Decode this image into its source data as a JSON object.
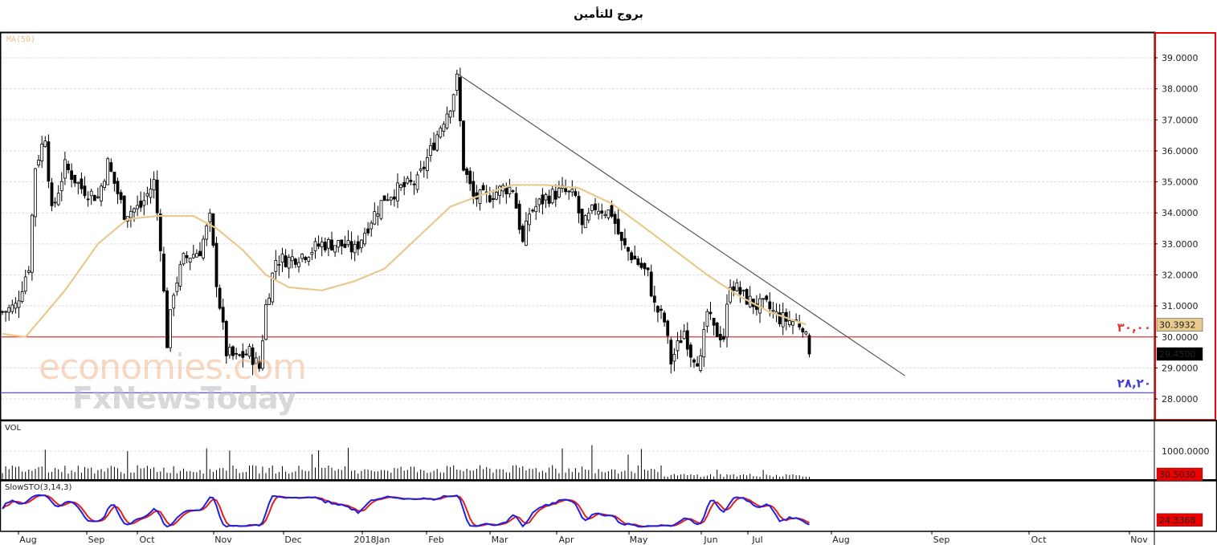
{
  "title": "بروج للتأمين",
  "chart_data": {
    "type": "candlestick",
    "title": "بروج للتأمين",
    "price_axis": {
      "ticks": [
        "39.0000",
        "38.0000",
        "37.0000",
        "36.0000",
        "35.0000",
        "34.0000",
        "33.0000",
        "32.0000",
        "31.0000",
        "30.0000",
        "29.0000",
        "28.0000"
      ],
      "range": [
        27.4,
        39.8
      ]
    },
    "x_ticks": [
      "Aug",
      "Sep",
      "Oct",
      "Nov",
      "Dec",
      "2018Jan",
      "Feb",
      "Mar",
      "Apr",
      "May",
      "Jun",
      "Jul",
      "Aug",
      "Sep",
      "Oct",
      "Nov"
    ],
    "close_anchors": [
      [
        0,
        30.8
      ],
      [
        4,
        31
      ],
      [
        8,
        32.3
      ],
      [
        10,
        35.5
      ],
      [
        13,
        36.5
      ],
      [
        15,
        34
      ],
      [
        19,
        35.5
      ],
      [
        24,
        34.8
      ],
      [
        29,
        34.5
      ],
      [
        32,
        35.6
      ],
      [
        37,
        34
      ],
      [
        42,
        34.2
      ],
      [
        46,
        35
      ],
      [
        48,
        33
      ],
      [
        50,
        29.8
      ],
      [
        52,
        31.5
      ],
      [
        55,
        32.5
      ],
      [
        60,
        32.8
      ],
      [
        63,
        33.8
      ],
      [
        65,
        31.8
      ],
      [
        68,
        29.5
      ],
      [
        71,
        29.3
      ],
      [
        75,
        29.5
      ],
      [
        78,
        29
      ],
      [
        80,
        31
      ],
      [
        83,
        32.5
      ],
      [
        87,
        32.5
      ],
      [
        92,
        32.7
      ],
      [
        97,
        33
      ],
      [
        102,
        33
      ],
      [
        107,
        32.8
      ],
      [
        112,
        33.8
      ],
      [
        116,
        34.5
      ],
      [
        121,
        34.8
      ],
      [
        126,
        35
      ],
      [
        130,
        36
      ],
      [
        133,
        36.8
      ],
      [
        136,
        37.5
      ],
      [
        138,
        38.3
      ],
      [
        140,
        35.5
      ],
      [
        143,
        34.5
      ],
      [
        147,
        34.5
      ],
      [
        152,
        34.8
      ],
      [
        155,
        34.8
      ],
      [
        158,
        33
      ],
      [
        160,
        34
      ],
      [
        165,
        34.5
      ],
      [
        170,
        34.7
      ],
      [
        174,
        34.5
      ],
      [
        176,
        33.5
      ],
      [
        180,
        34.2
      ],
      [
        185,
        34
      ],
      [
        188,
        33
      ],
      [
        192,
        32.5
      ],
      [
        196,
        32
      ],
      [
        198,
        31
      ],
      [
        201,
        30.5
      ],
      [
        203,
        29.2
      ],
      [
        207,
        30.2
      ],
      [
        209,
        29.5
      ],
      [
        212,
        29.2
      ],
      [
        214,
        30.8
      ],
      [
        216,
        30.2
      ],
      [
        219,
        30
      ],
      [
        221,
        31.8
      ],
      [
        225,
        31.3
      ],
      [
        229,
        31
      ],
      [
        232,
        31
      ],
      [
        236,
        30.6
      ],
      [
        240,
        30.5
      ],
      [
        243,
        30.4
      ],
      [
        245,
        29.45
      ]
    ],
    "ma50_anchors": [
      [
        0,
        30.1
      ],
      [
        7,
        30
      ],
      [
        11,
        30.5
      ],
      [
        19,
        31.5
      ],
      [
        29,
        33
      ],
      [
        38,
        33.8
      ],
      [
        47,
        33.9
      ],
      [
        58,
        33.9
      ],
      [
        65,
        33.5
      ],
      [
        73,
        32.8
      ],
      [
        80,
        32
      ],
      [
        87,
        31.6
      ],
      [
        97,
        31.5
      ],
      [
        107,
        31.8
      ],
      [
        116,
        32.2
      ],
      [
        126,
        33.2
      ],
      [
        136,
        34.2
      ],
      [
        146,
        34.6
      ],
      [
        155,
        34.9
      ],
      [
        165,
        34.9
      ],
      [
        175,
        34.8
      ],
      [
        185,
        34.3
      ],
      [
        194,
        33.6
      ],
      [
        204,
        32.8
      ],
      [
        214,
        32
      ],
      [
        224,
        31.3
      ],
      [
        233,
        30.8
      ],
      [
        244,
        30.4
      ]
    ],
    "trendline": {
      "from": [
        138,
        38.5
      ],
      "to": [
        274,
        28.75
      ]
    },
    "support_lines": [
      {
        "price": 30.0,
        "label": "٣٠,٠٠",
        "color": "#e53935"
      },
      {
        "price": 28.2,
        "label": "٢٨,٢٠",
        "color": "#3f3fd8"
      }
    ],
    "last_price": "29.4500",
    "ma_value": "30.3932",
    "ma_label": "MA(50)",
    "volume": {
      "label": "VOL",
      "tick": "1000.0000",
      "last": "30.5030"
    },
    "stochastic": {
      "label": "SlowSTO(3,14,3)",
      "last": "24.3368",
      "k_color": "#1f1fe0",
      "d_color": "#e01f1f"
    }
  },
  "watermark": {
    "line1": "economies.com",
    "line2": "FxNewsToday"
  }
}
